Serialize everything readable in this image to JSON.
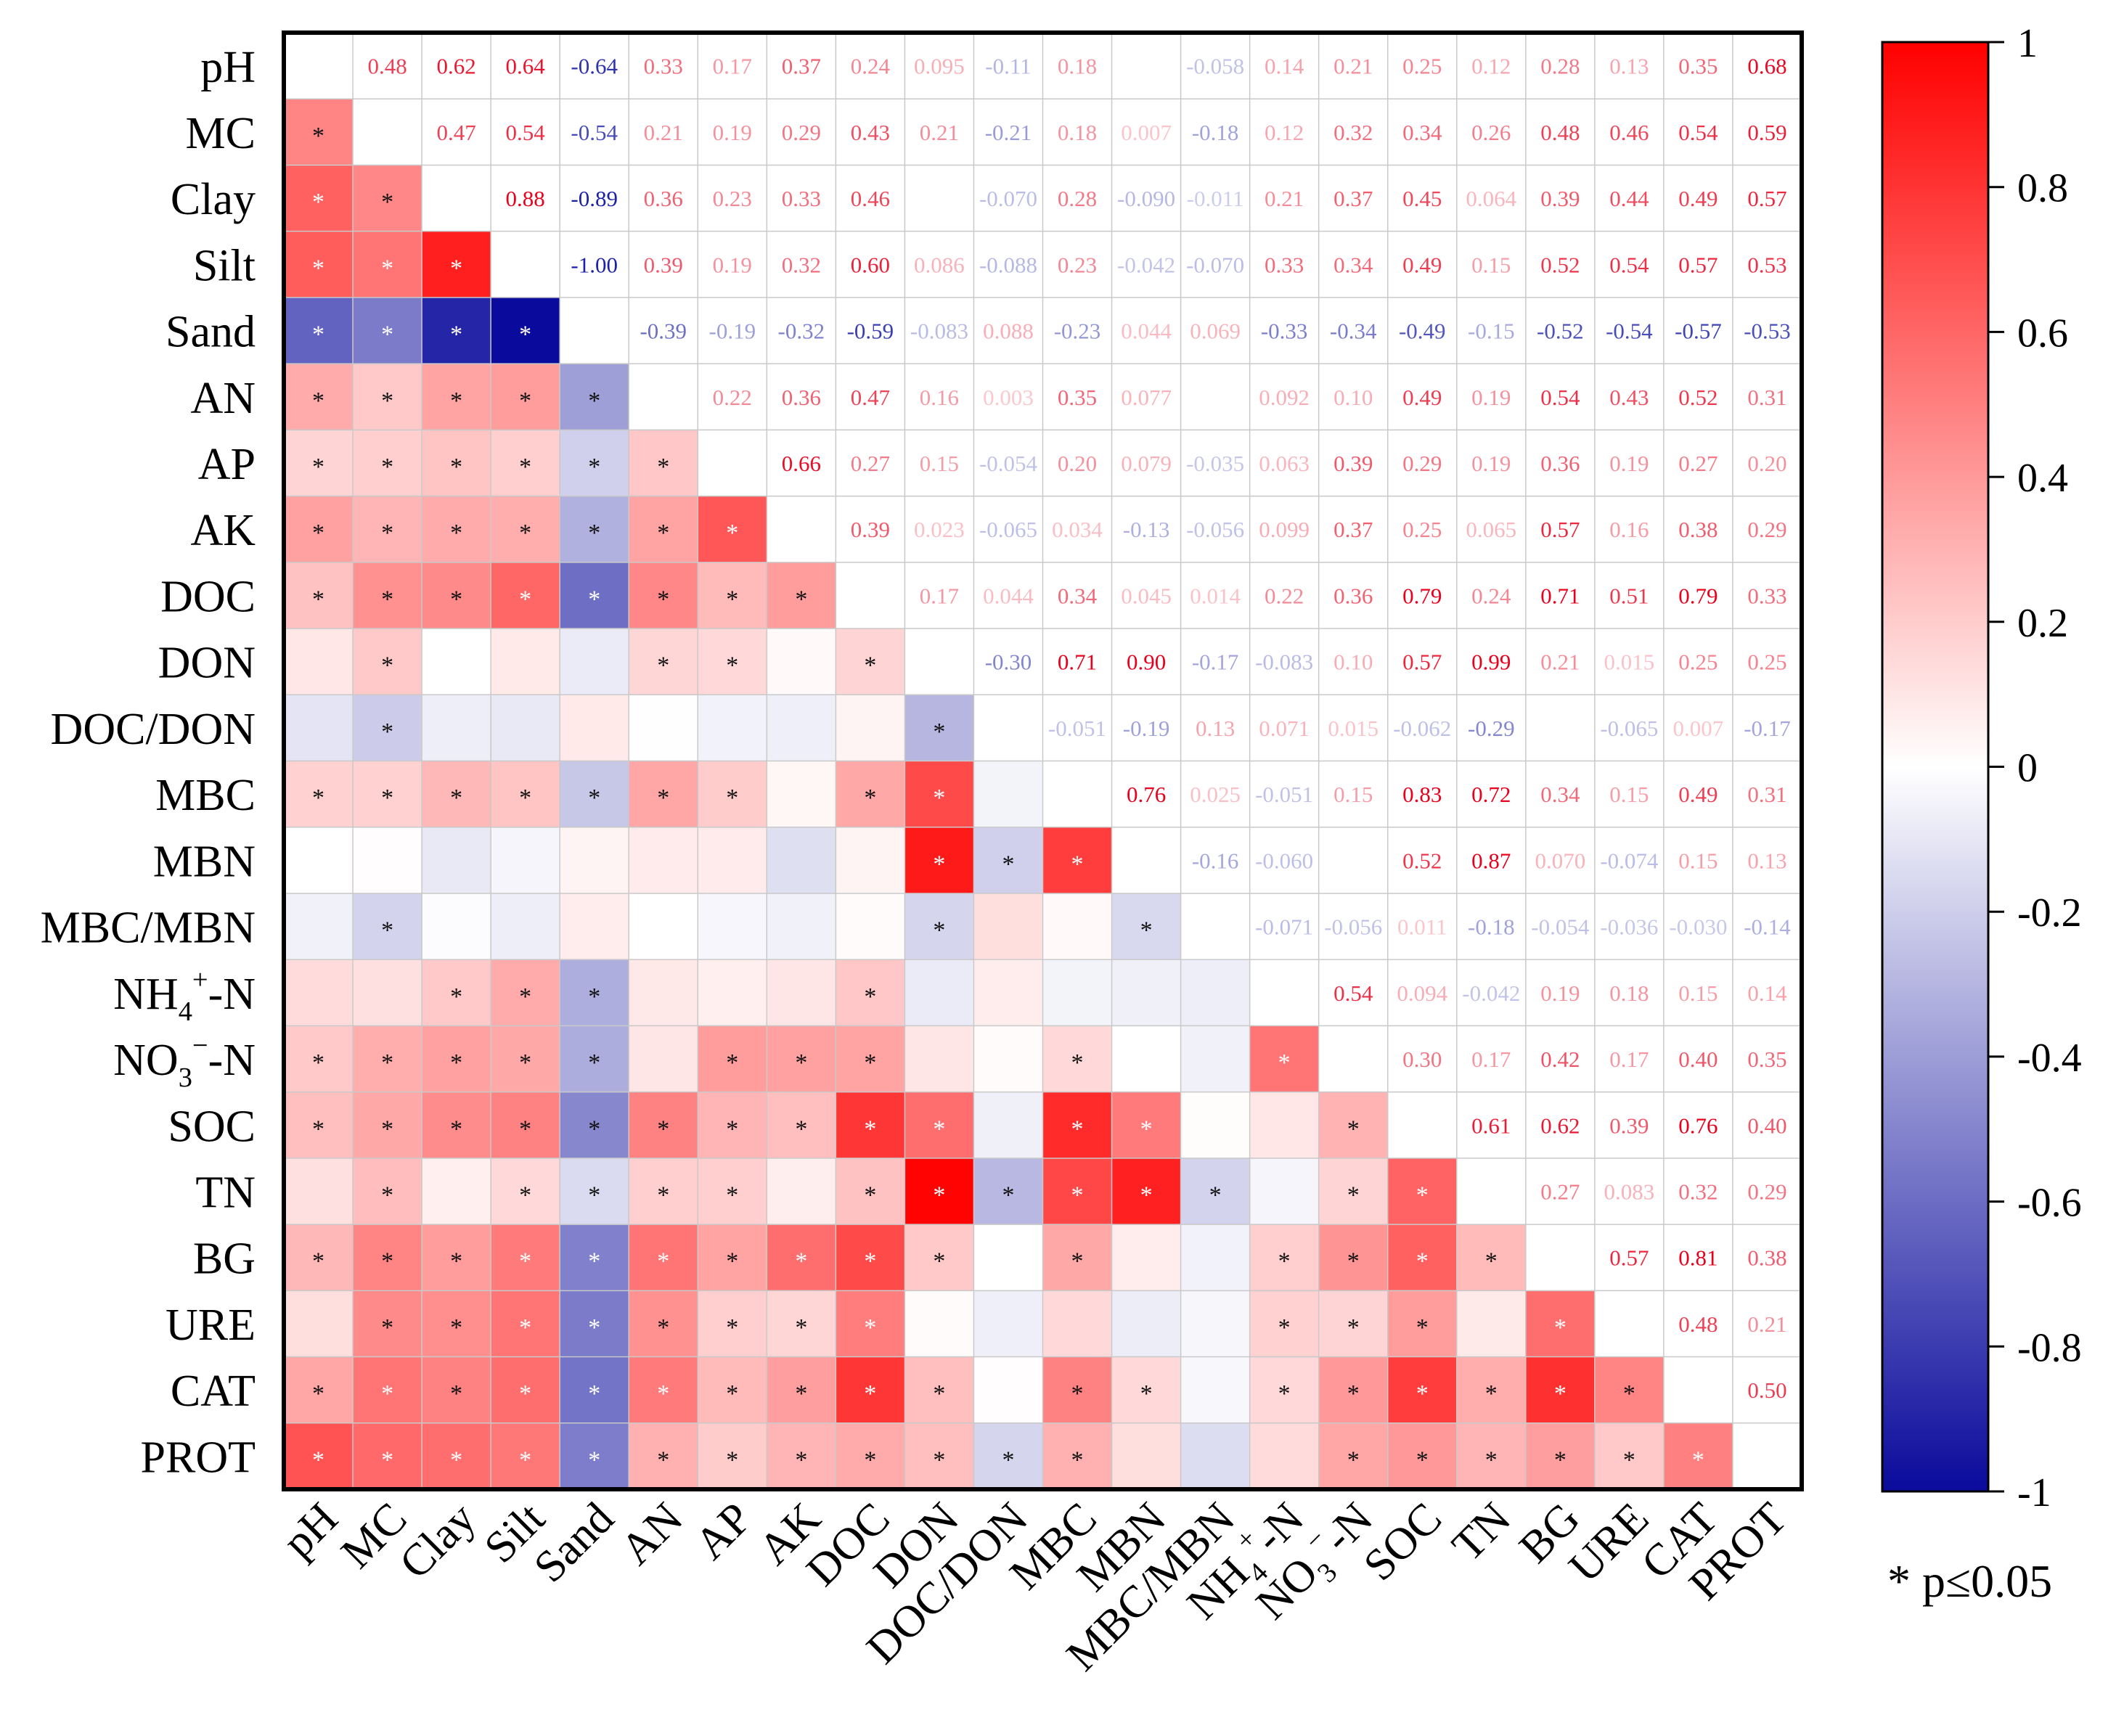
{
  "chart_data": {
    "type": "heatmap",
    "title": "",
    "variables": [
      "pH",
      "MC",
      "Clay",
      "Silt",
      "Sand",
      "AN",
      "AP",
      "AK",
      "DOC",
      "DON",
      "DOC/DON",
      "MBC",
      "MBN",
      "MBC/MBN",
      "NH4+-N",
      "NO3−-N",
      "SOC",
      "TN",
      "BG",
      "URE",
      "CAT",
      "PROT"
    ],
    "upper_labels": [
      [
        "",
        "0.48",
        "0.62",
        "0.64",
        "-0.64",
        "0.33",
        "0.17",
        "0.37",
        "0.24",
        "0.095",
        "-0.11",
        "0.18",
        "",
        "-0.058",
        "0.14",
        "0.21",
        "0.25",
        "0.12",
        "0.28",
        "0.13",
        "0.35",
        "0.68"
      ],
      [
        "",
        "",
        "0.47",
        "0.54",
        "-0.54",
        "0.21",
        "0.19",
        "0.29",
        "0.43",
        "0.21",
        "-0.21",
        "0.18",
        "0.007",
        "-0.18",
        "0.12",
        "0.32",
        "0.34",
        "0.26",
        "0.48",
        "0.46",
        "0.54",
        "0.59"
      ],
      [
        "",
        "",
        "",
        "0.88",
        "-0.89",
        "0.36",
        "0.23",
        "0.33",
        "0.46",
        "",
        "-0.070",
        "0.28",
        "-0.090",
        "-0.011",
        "0.21",
        "0.37",
        "0.45",
        "0.064",
        "0.39",
        "0.44",
        "0.49",
        "0.57"
      ],
      [
        "",
        "",
        "",
        "",
        "-1.00",
        "0.39",
        "0.19",
        "0.32",
        "0.60",
        "0.086",
        "-0.088",
        "0.23",
        "-0.042",
        "-0.070",
        "0.33",
        "0.34",
        "0.49",
        "0.15",
        "0.52",
        "0.54",
        "0.57",
        "0.53"
      ],
      [
        "",
        "",
        "",
        "",
        "",
        "-0.39",
        "-0.19",
        "-0.32",
        "-0.59",
        "-0.083",
        "0.088",
        "-0.23",
        "0.044",
        "0.069",
        "-0.33",
        "-0.34",
        "-0.49",
        "-0.15",
        "-0.52",
        "-0.54",
        "-0.57",
        "-0.53"
      ],
      [
        "",
        "",
        "",
        "",
        "",
        "",
        "0.22",
        "0.36",
        "0.47",
        "0.16",
        "0.003",
        "0.35",
        "0.077",
        "",
        "0.092",
        "0.10",
        "0.49",
        "0.19",
        "0.54",
        "0.43",
        "0.52",
        "0.31"
      ],
      [
        "",
        "",
        "",
        "",
        "",
        "",
        "",
        "0.66",
        "0.27",
        "0.15",
        "-0.054",
        "0.20",
        "0.079",
        "-0.035",
        "0.063",
        "0.39",
        "0.29",
        "0.19",
        "0.36",
        "0.19",
        "0.27",
        "0.20"
      ],
      [
        "",
        "",
        "",
        "",
        "",
        "",
        "",
        "",
        "0.39",
        "0.023",
        "-0.065",
        "0.034",
        "-0.13",
        "-0.056",
        "0.099",
        "0.37",
        "0.25",
        "0.065",
        "0.57",
        "0.16",
        "0.38",
        "0.29"
      ],
      [
        "",
        "",
        "",
        "",
        "",
        "",
        "",
        "",
        "",
        "0.17",
        "0.044",
        "0.34",
        "0.045",
        "0.014",
        "0.22",
        "0.36",
        "0.79",
        "0.24",
        "0.71",
        "0.51",
        "0.79",
        "0.33"
      ],
      [
        "",
        "",
        "",
        "",
        "",
        "",
        "",
        "",
        "",
        "",
        "-0.30",
        "0.71",
        "0.90",
        "-0.17",
        "-0.083",
        "0.10",
        "0.57",
        "0.99",
        "0.21",
        "0.015",
        "0.25",
        "0.25"
      ],
      [
        "",
        "",
        "",
        "",
        "",
        "",
        "",
        "",
        "",
        "",
        "",
        "-0.051",
        "-0.19",
        "0.13",
        "0.071",
        "0.015",
        "-0.062",
        "-0.29",
        "",
        "-0.065",
        "0.007",
        "-0.17"
      ],
      [
        "",
        "",
        "",
        "",
        "",
        "",
        "",
        "",
        "",
        "",
        "",
        "",
        "0.76",
        "0.025",
        "-0.051",
        "0.15",
        "0.83",
        "0.72",
        "0.34",
        "0.15",
        "0.49",
        "0.31"
      ],
      [
        "",
        "",
        "",
        "",
        "",
        "",
        "",
        "",
        "",
        "",
        "",
        "",
        "",
        "-0.16",
        "-0.060",
        "",
        "0.52",
        "0.87",
        "0.070",
        "-0.074",
        "0.15",
        "0.13"
      ],
      [
        "",
        "",
        "",
        "",
        "",
        "",
        "",
        "",
        "",
        "",
        "",
        "",
        "",
        "",
        "-0.071",
        "-0.056",
        "0.011",
        "-0.18",
        "-0.054",
        "-0.036",
        "-0.030",
        "-0.14"
      ],
      [
        "",
        "",
        "",
        "",
        "",
        "",
        "",
        "",
        "",
        "",
        "",
        "",
        "",
        "",
        "",
        "0.54",
        "0.094",
        "-0.042",
        "0.19",
        "0.18",
        "0.15",
        "0.14"
      ],
      [
        "",
        "",
        "",
        "",
        "",
        "",
        "",
        "",
        "",
        "",
        "",
        "",
        "",
        "",
        "",
        "",
        "0.30",
        "0.17",
        "0.42",
        "0.17",
        "0.40",
        "0.35"
      ],
      [
        "",
        "",
        "",
        "",
        "",
        "",
        "",
        "",
        "",
        "",
        "",
        "",
        "",
        "",
        "",
        "",
        "",
        "0.61",
        "0.62",
        "0.39",
        "0.76",
        "0.40"
      ],
      [
        "",
        "",
        "",
        "",
        "",
        "",
        "",
        "",
        "",
        "",
        "",
        "",
        "",
        "",
        "",
        "",
        "",
        "",
        "0.27",
        "0.083",
        "0.32",
        "0.29"
      ],
      [
        "",
        "",
        "",
        "",
        "",
        "",
        "",
        "",
        "",
        "",
        "",
        "",
        "",
        "",
        "",
        "",
        "",
        "",
        "",
        "0.57",
        "0.81",
        "0.38"
      ],
      [
        "",
        "",
        "",
        "",
        "",
        "",
        "",
        "",
        "",
        "",
        "",
        "",
        "",
        "",
        "",
        "",
        "",
        "",
        "",
        "",
        "0.48",
        "0.21"
      ],
      [
        "",
        "",
        "",
        "",
        "",
        "",
        "",
        "",
        "",
        "",
        "",
        "",
        "",
        "",
        "",
        "",
        "",
        "",
        "",
        "",
        "",
        "0.50"
      ],
      [
        "",
        "",
        "",
        "",
        "",
        "",
        "",
        "",
        "",
        "",
        "",
        "",
        "",
        "",
        "",
        "",
        "",
        "",
        "",
        "",
        "",
        ""
      ]
    ],
    "significant_pairs": [
      [
        "MC",
        "pH"
      ],
      [
        "Clay",
        "pH"
      ],
      [
        "Clay",
        "MC"
      ],
      [
        "Silt",
        "pH"
      ],
      [
        "Silt",
        "MC"
      ],
      [
        "Silt",
        "Clay"
      ],
      [
        "Sand",
        "pH"
      ],
      [
        "Sand",
        "MC"
      ],
      [
        "Sand",
        "Clay"
      ],
      [
        "Sand",
        "Silt"
      ],
      [
        "AN",
        "pH"
      ],
      [
        "AN",
        "MC"
      ],
      [
        "AN",
        "Clay"
      ],
      [
        "AN",
        "Silt"
      ],
      [
        "AN",
        "Sand"
      ],
      [
        "AP",
        "pH"
      ],
      [
        "AP",
        "MC"
      ],
      [
        "AP",
        "Clay"
      ],
      [
        "AP",
        "Silt"
      ],
      [
        "AP",
        "Sand"
      ],
      [
        "AP",
        "AN"
      ],
      [
        "AK",
        "pH"
      ],
      [
        "AK",
        "MC"
      ],
      [
        "AK",
        "Clay"
      ],
      [
        "AK",
        "Silt"
      ],
      [
        "AK",
        "Sand"
      ],
      [
        "AK",
        "AN"
      ],
      [
        "AK",
        "AP"
      ],
      [
        "DOC",
        "pH"
      ],
      [
        "DOC",
        "MC"
      ],
      [
        "DOC",
        "Clay"
      ],
      [
        "DOC",
        "Silt"
      ],
      [
        "DOC",
        "Sand"
      ],
      [
        "DOC",
        "AN"
      ],
      [
        "DOC",
        "AP"
      ],
      [
        "DOC",
        "AK"
      ],
      [
        "DON",
        "MC"
      ],
      [
        "DON",
        "AN"
      ],
      [
        "DON",
        "AP"
      ],
      [
        "DON",
        "DOC"
      ],
      [
        "DOC/DON",
        "MC"
      ],
      [
        "DOC/DON",
        "DON"
      ],
      [
        "MBC",
        "pH"
      ],
      [
        "MBC",
        "MC"
      ],
      [
        "MBC",
        "Clay"
      ],
      [
        "MBC",
        "Silt"
      ],
      [
        "MBC",
        "Sand"
      ],
      [
        "MBC",
        "AN"
      ],
      [
        "MBC",
        "AP"
      ],
      [
        "MBC",
        "DOC"
      ],
      [
        "MBC",
        "DON"
      ],
      [
        "MBN",
        "DON"
      ],
      [
        "MBN",
        "DOC/DON"
      ],
      [
        "MBN",
        "MBC"
      ],
      [
        "MBC/MBN",
        "MC"
      ],
      [
        "MBC/MBN",
        "DON"
      ],
      [
        "MBC/MBN",
        "MBN"
      ],
      [
        "NH4+-N",
        "Clay"
      ],
      [
        "NH4+-N",
        "Silt"
      ],
      [
        "NH4+-N",
        "Sand"
      ],
      [
        "NH4+-N",
        "DOC"
      ],
      [
        "NO3−-N",
        "pH"
      ],
      [
        "NO3−-N",
        "MC"
      ],
      [
        "NO3−-N",
        "Clay"
      ],
      [
        "NO3−-N",
        "Silt"
      ],
      [
        "NO3−-N",
        "Sand"
      ],
      [
        "NO3−-N",
        "AP"
      ],
      [
        "NO3−-N",
        "AK"
      ],
      [
        "NO3−-N",
        "DOC"
      ],
      [
        "NO3−-N",
        "MBC"
      ],
      [
        "NO3−-N",
        "NH4+-N"
      ],
      [
        "SOC",
        "pH"
      ],
      [
        "SOC",
        "MC"
      ],
      [
        "SOC",
        "Clay"
      ],
      [
        "SOC",
        "Silt"
      ],
      [
        "SOC",
        "Sand"
      ],
      [
        "SOC",
        "AN"
      ],
      [
        "SOC",
        "AP"
      ],
      [
        "SOC",
        "AK"
      ],
      [
        "SOC",
        "DOC"
      ],
      [
        "SOC",
        "DON"
      ],
      [
        "SOC",
        "MBC"
      ],
      [
        "SOC",
        "MBN"
      ],
      [
        "SOC",
        "NO3−-N"
      ],
      [
        "TN",
        "MC"
      ],
      [
        "TN",
        "Silt"
      ],
      [
        "TN",
        "Sand"
      ],
      [
        "TN",
        "AN"
      ],
      [
        "TN",
        "AP"
      ],
      [
        "TN",
        "DOC"
      ],
      [
        "TN",
        "DON"
      ],
      [
        "TN",
        "DOC/DON"
      ],
      [
        "TN",
        "MBC"
      ],
      [
        "TN",
        "MBN"
      ],
      [
        "TN",
        "MBC/MBN"
      ],
      [
        "TN",
        "NO3−-N"
      ],
      [
        "TN",
        "SOC"
      ],
      [
        "BG",
        "pH"
      ],
      [
        "BG",
        "MC"
      ],
      [
        "BG",
        "Clay"
      ],
      [
        "BG",
        "Silt"
      ],
      [
        "BG",
        "Sand"
      ],
      [
        "BG",
        "AN"
      ],
      [
        "BG",
        "AP"
      ],
      [
        "BG",
        "AK"
      ],
      [
        "BG",
        "DOC"
      ],
      [
        "BG",
        "DON"
      ],
      [
        "BG",
        "MBC"
      ],
      [
        "BG",
        "NH4+-N"
      ],
      [
        "BG",
        "NO3−-N"
      ],
      [
        "BG",
        "SOC"
      ],
      [
        "BG",
        "TN"
      ],
      [
        "URE",
        "MC"
      ],
      [
        "URE",
        "Clay"
      ],
      [
        "URE",
        "Silt"
      ],
      [
        "URE",
        "Sand"
      ],
      [
        "URE",
        "AN"
      ],
      [
        "URE",
        "AP"
      ],
      [
        "URE",
        "AK"
      ],
      [
        "URE",
        "DOC"
      ],
      [
        "URE",
        "NH4+-N"
      ],
      [
        "URE",
        "NO3−-N"
      ],
      [
        "URE",
        "SOC"
      ],
      [
        "URE",
        "BG"
      ],
      [
        "CAT",
        "pH"
      ],
      [
        "CAT",
        "MC"
      ],
      [
        "CAT",
        "Clay"
      ],
      [
        "CAT",
        "Silt"
      ],
      [
        "CAT",
        "Sand"
      ],
      [
        "CAT",
        "AN"
      ],
      [
        "CAT",
        "AP"
      ],
      [
        "CAT",
        "AK"
      ],
      [
        "CAT",
        "DOC"
      ],
      [
        "CAT",
        "DON"
      ],
      [
        "CAT",
        "MBC"
      ],
      [
        "CAT",
        "MBN"
      ],
      [
        "CAT",
        "NH4+-N"
      ],
      [
        "CAT",
        "NO3−-N"
      ],
      [
        "CAT",
        "SOC"
      ],
      [
        "CAT",
        "TN"
      ],
      [
        "CAT",
        "BG"
      ],
      [
        "CAT",
        "URE"
      ],
      [
        "PROT",
        "pH"
      ],
      [
        "PROT",
        "MC"
      ],
      [
        "PROT",
        "Clay"
      ],
      [
        "PROT",
        "Silt"
      ],
      [
        "PROT",
        "Sand"
      ],
      [
        "PROT",
        "AN"
      ],
      [
        "PROT",
        "AP"
      ],
      [
        "PROT",
        "AK"
      ],
      [
        "PROT",
        "DOC"
      ],
      [
        "PROT",
        "DON"
      ],
      [
        "PROT",
        "DOC/DON"
      ],
      [
        "PROT",
        "MBC"
      ],
      [
        "PROT",
        "NO3−-N"
      ],
      [
        "PROT",
        "SOC"
      ],
      [
        "PROT",
        "TN"
      ],
      [
        "PROT",
        "BG"
      ],
      [
        "PROT",
        "URE"
      ],
      [
        "PROT",
        "CAT"
      ]
    ],
    "significance_mark": "*",
    "legend_note": "* p≤0.05",
    "colorbar": {
      "min": -1,
      "max": 1,
      "tick_labels": [
        "1",
        "0.8",
        "0.6",
        "0.4",
        "0.2",
        "0",
        "-0.2",
        "-0.4",
        "-0.6",
        "-0.8",
        "-1"
      ],
      "colors": {
        "negative": "#0a0a9c",
        "zero": "#ffffff",
        "positive": "#ff0000"
      }
    },
    "text_colors": {
      "positive": "#e8001c",
      "negative": "#1c22a8"
    }
  }
}
